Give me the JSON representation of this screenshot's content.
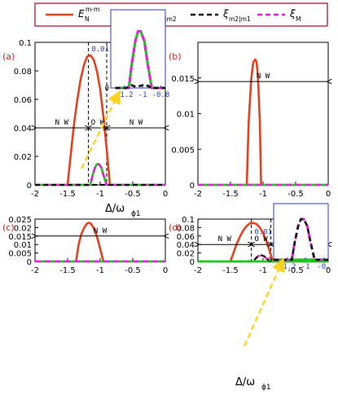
{
  "legend": {
    "items": [
      {
        "name": "E",
        "sup": "m-m",
        "sub": "N",
        "color": "#e8401c",
        "dash": "solid"
      },
      {
        "name": "ξ",
        "sub": "m1|m2",
        "color": "#22c422",
        "dash": "solid"
      },
      {
        "name": "ξ",
        "sub": "m2|m1",
        "color": "#111111",
        "dash": "dashed"
      },
      {
        "name": "ξ",
        "sub": "M",
        "color": "#e81ee0",
        "dash": "dashed"
      }
    ],
    "frame_color": "#b0001c"
  },
  "xlabel": {
    "main": "Δ/ω",
    "sub": "ϕ1"
  },
  "chart_data": [
    {
      "panel_label": "(a)",
      "type": "line",
      "xlim": [
        -2,
        0
      ],
      "ylim": [
        0,
        0.1
      ],
      "xticks": [
        "-2",
        "-1.5",
        "-1",
        "-0.5",
        "0"
      ],
      "yticks": [
        "0",
        "0.02",
        "0.04",
        "0.06",
        "0.08",
        "0.1"
      ],
      "series": [
        {
          "key": "EN",
          "x": [
            -1.5,
            -1.45,
            -1.4,
            -1.35,
            -1.3,
            -1.25,
            -1.2,
            -1.15,
            -1.1,
            -1.05,
            -1.0,
            -0.95,
            -0.9,
            -0.85
          ],
          "y": [
            0.0,
            0.022,
            0.043,
            0.06,
            0.074,
            0.084,
            0.09,
            0.091,
            0.088,
            0.08,
            0.067,
            0.048,
            0.025,
            0.0
          ]
        },
        {
          "key": "xi12",
          "x": [
            -2,
            -1.15,
            -1.12,
            -1.08,
            -1.05,
            -1.02,
            -0.98,
            -0.95,
            -0.9,
            0
          ],
          "y": [
            0,
            0,
            0.006,
            0.012,
            0.0145,
            0.0145,
            0.012,
            0.007,
            0,
            0
          ]
        },
        {
          "key": "xiM",
          "x": [
            -2,
            -1.15,
            -1.12,
            -1.08,
            -1.05,
            -1.02,
            -0.98,
            -0.95,
            -0.9,
            0
          ],
          "y": [
            0,
            0,
            0.006,
            0.012,
            0.0145,
            0.0145,
            0.012,
            0.007,
            0,
            0
          ]
        },
        {
          "key": "xi21",
          "x": [
            -2,
            0
          ],
          "y": [
            0,
            0
          ]
        }
      ],
      "vlines": [
        -1.18,
        -0.9
      ],
      "arrows": [
        {
          "from": -2,
          "to": -1.18,
          "y": 0.04,
          "label": "N W"
        },
        {
          "from": -1.18,
          "to": -0.9,
          "y": 0.04,
          "label": "O W"
        },
        {
          "from": -0.9,
          "to": 0,
          "y": 0.04,
          "label": "N W"
        }
      ],
      "inset": {
        "xlim": [
          -1.35,
          -0.75
        ],
        "ylim": [
          0,
          0.02
        ],
        "xticks": [
          "-1.2",
          "-1",
          "-0.8"
        ],
        "yticks": [
          "0",
          "0.01"
        ],
        "series": [
          {
            "key": "xi12",
            "x": [
              -1.3,
              -1.15,
              -1.12,
              -1.08,
              -1.05,
              -1.02,
              -0.98,
              -0.95,
              -0.9,
              -0.75
            ],
            "y": [
              0,
              0,
              0.006,
              0.012,
              0.0145,
              0.0145,
              0.012,
              0.007,
              0,
              0
            ]
          },
          {
            "key": "xiM",
            "x": [
              -1.3,
              -1.15,
              -1.12,
              -1.08,
              -1.05,
              -1.02,
              -0.98,
              -0.95,
              -0.9,
              -0.75
            ],
            "y": [
              0,
              0,
              0.006,
              0.012,
              0.0145,
              0.0145,
              0.012,
              0.007,
              0,
              0
            ]
          },
          {
            "key": "xi21",
            "x": [
              -1.3,
              -1.18,
              -1.15,
              -1.12,
              -1.09,
              -1.06,
              -1.03,
              -1.0,
              -0.97,
              -0.94,
              -0.91,
              -0.75
            ],
            "y": [
              0,
              0,
              0.0004,
              0.0007,
              0.0004,
              0.0006,
              0.0005,
              0.0007,
              0.0004,
              0.0006,
              0,
              0
            ]
          }
        ]
      }
    },
    {
      "panel_label": "(b)",
      "type": "line",
      "xlim": [
        -2,
        0
      ],
      "ylim": [
        0,
        0.02
      ],
      "xticks": [
        "-2",
        "-1.5",
        "-1",
        "-0.5",
        "0"
      ],
      "yticks": [
        "0",
        "0.005",
        "0.01",
        "0.015"
      ],
      "series": [
        {
          "key": "EN",
          "x": [
            -1.25,
            -1.22,
            -1.18,
            -1.15,
            -1.12,
            -1.1,
            -1.08,
            -1.05,
            -1.03
          ],
          "y": [
            0.0,
            0.009,
            0.015,
            0.0172,
            0.0176,
            0.0172,
            0.0155,
            0.009,
            0.0
          ]
        },
        {
          "key": "xi12",
          "x": [
            -2,
            0
          ],
          "y": [
            0,
            0
          ]
        },
        {
          "key": "xiM",
          "x": [
            -2,
            0
          ],
          "y": [
            0,
            0
          ]
        }
      ],
      "vlines": [],
      "arrows": [
        {
          "from": -2,
          "to": 0,
          "y": 0.0145,
          "label": "N W"
        }
      ]
    },
    {
      "panel_label": "(c)",
      "type": "line",
      "xlim": [
        -2,
        0
      ],
      "ylim": [
        0,
        0.025
      ],
      "xticks": [
        "-2",
        "-1.5",
        "-1",
        "-0.5",
        "0"
      ],
      "yticks": [
        "0",
        "0.005",
        "0.01",
        "0.015",
        "0.02",
        "0.025"
      ],
      "series": [
        {
          "key": "EN",
          "x": [
            -1.37,
            -1.33,
            -1.29,
            -1.25,
            -1.21,
            -1.18,
            -1.15,
            -1.11,
            -1.07,
            -1.03,
            -0.99,
            -0.95
          ],
          "y": [
            0.0,
            0.01,
            0.016,
            0.0195,
            0.022,
            0.0228,
            0.0226,
            0.0205,
            0.017,
            0.012,
            0.006,
            0.0
          ]
        },
        {
          "key": "xi12",
          "x": [
            -2,
            0
          ],
          "y": [
            0,
            0
          ]
        },
        {
          "key": "xiM",
          "x": [
            -2,
            0
          ],
          "y": [
            0,
            0
          ]
        }
      ],
      "vlines": [],
      "arrows": [
        {
          "from": -2,
          "to": 0,
          "y": 0.015,
          "label": "N W"
        }
      ]
    },
    {
      "panel_label": "(d)",
      "type": "line",
      "xlim": [
        -2,
        0
      ],
      "ylim": [
        0,
        0.1
      ],
      "xticks": [
        "-2",
        "-1.5",
        "-1",
        "-0.5",
        "0"
      ],
      "yticks": [
        "0",
        "0.02",
        "0.04",
        "0.06",
        "0.08",
        "0.1"
      ],
      "series": [
        {
          "key": "EN",
          "x": [
            -1.5,
            -1.45,
            -1.4,
            -1.35,
            -1.3,
            -1.25,
            -1.2,
            -1.15,
            -1.1,
            -1.05,
            -1.0,
            -0.95,
            -0.9,
            -0.85
          ],
          "y": [
            0.0,
            0.022,
            0.043,
            0.06,
            0.074,
            0.084,
            0.09,
            0.091,
            0.088,
            0.08,
            0.067,
            0.048,
            0.025,
            0.0
          ]
        },
        {
          "key": "xiM",
          "x": [
            -2,
            -1.15,
            -1.12,
            -1.08,
            -1.05,
            -1.02,
            -0.98,
            -0.95,
            -0.9,
            0
          ],
          "y": [
            0,
            0,
            0.006,
            0.012,
            0.0145,
            0.0145,
            0.012,
            0.007,
            0,
            0
          ]
        },
        {
          "key": "xi21",
          "x": [
            -2,
            -1.15,
            -1.12,
            -1.08,
            -1.05,
            -1.02,
            -0.98,
            -0.95,
            -0.9,
            0
          ],
          "y": [
            0,
            0,
            0.006,
            0.012,
            0.0145,
            0.0145,
            0.012,
            0.007,
            0,
            0
          ]
        },
        {
          "key": "xi12",
          "x": [
            -2,
            0
          ],
          "y": [
            0,
            0
          ]
        }
      ],
      "vlines": [
        -1.18,
        -0.88
      ],
      "arrows": [
        {
          "from": -2,
          "to": -1.18,
          "y": 0.04,
          "label": "N W"
        },
        {
          "from": -1.18,
          "to": -0.88,
          "y": 0.04,
          "label": "O W"
        },
        {
          "from": -0.88,
          "to": 0,
          "y": 0.04,
          "label": "N W"
        }
      ],
      "inset": {
        "xlim": [
          -1.35,
          -0.75
        ],
        "ylim": [
          0,
          0.02
        ],
        "xticks": [
          "-1.2",
          "-1",
          "-0."
        ],
        "yticks": [
          "0",
          "0.01"
        ],
        "series": [
          {
            "key": "xi12",
            "x": [
              -1.35,
              -0.75
            ],
            "y": [
              0,
              0
            ]
          },
          {
            "key": "xiM",
            "x": [
              -1.35,
              -1.15,
              -1.12,
              -1.08,
              -1.05,
              -1.02,
              -0.98,
              -0.95,
              -0.9,
              -0.75
            ],
            "y": [
              0,
              0,
              0.006,
              0.012,
              0.0145,
              0.0145,
              0.012,
              0.007,
              0,
              0
            ]
          },
          {
            "key": "xi21",
            "x": [
              -1.35,
              -1.15,
              -1.12,
              -1.08,
              -1.05,
              -1.02,
              -0.98,
              -0.95,
              -0.9,
              -0.75
            ],
            "y": [
              0,
              0,
              0.006,
              0.012,
              0.0145,
              0.0145,
              0.012,
              0.007,
              0,
              0
            ]
          }
        ]
      }
    }
  ]
}
